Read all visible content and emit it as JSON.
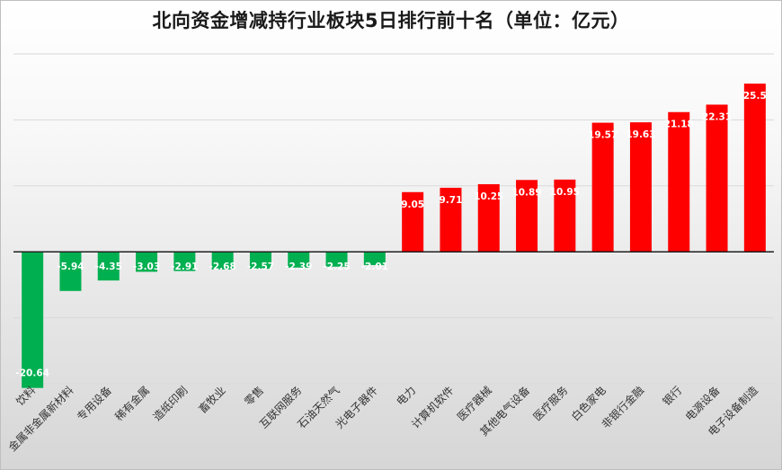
{
  "chart_data": {
    "type": "bar",
    "title": "北向资金增减持行业板块5日排行前十名（单位：亿元）",
    "categories": [
      "饮料",
      "金属非金属新材料",
      "专用设备",
      "稀有金属",
      "造纸印刷",
      "畜牧业",
      "零售",
      "互联网服务",
      "石油天然气",
      "光电子器件",
      "电力",
      "计算机软件",
      "医疗器械",
      "其他电气设备",
      "医疗服务",
      "白色家电",
      "非银行金融",
      "银行",
      "电源设备",
      "电子设备制造"
    ],
    "values": [
      -20.64,
      -5.94,
      -4.35,
      -3.03,
      -2.91,
      -2.68,
      -2.57,
      -2.39,
      -2.25,
      -2.01,
      9.05,
      9.71,
      10.25,
      10.89,
      10.95,
      19.57,
      19.63,
      21.18,
      22.31,
      25.5
    ],
    "value_labels": [
      "-20.64",
      "-5.94",
      "-4.35",
      "-3.03",
      "-2.91",
      "-2.68",
      "-2.57",
      "-2.39",
      "-2.25",
      "-2.01",
      "9.05",
      "9.71",
      "10.25",
      "10.89",
      "10.95",
      "19.57",
      "19.63",
      "21.18",
      "22.31",
      "25.5"
    ],
    "ylim": [
      -20,
      30
    ],
    "grid": true,
    "colors": {
      "positive": "#ff0000",
      "negative": "#00b050"
    }
  }
}
